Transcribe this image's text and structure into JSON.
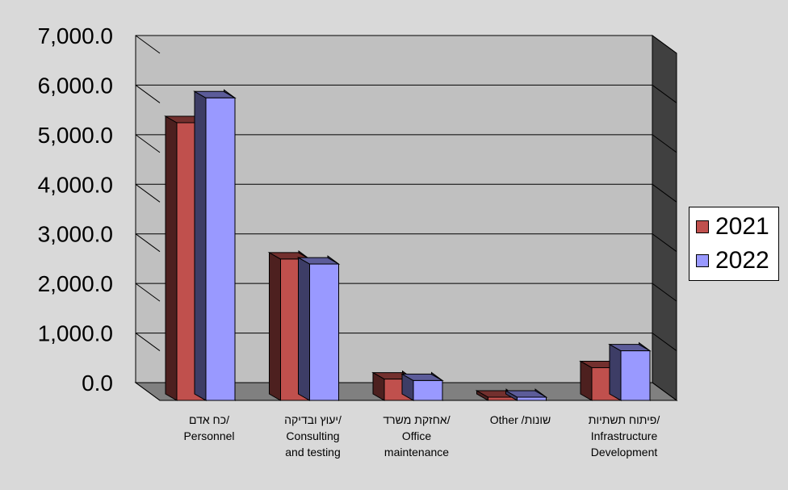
{
  "chart_data": {
    "type": "bar",
    "categories": [
      [
        "כח אדם/",
        "Personnel"
      ],
      [
        "יעוץ ובדיקה/",
        "Consulting",
        "and testing"
      ],
      [
        "אחזקת משרד/",
        "Office",
        "maintenance"
      ],
      [
        "Other /שונות"
      ],
      [
        "פיתוח תשתיות/",
        "Infrastructure",
        "Development"
      ]
    ],
    "series": [
      {
        "name": "2021",
        "color": "#c0504d",
        "values": [
          5600,
          2850,
          430,
          -80,
          660
        ]
      },
      {
        "name": "2022",
        "color": "#9999ff",
        "values": [
          6100,
          2750,
          400,
          -80,
          1000
        ]
      }
    ],
    "yticks": [
      "7,000.0",
      "6,000.0",
      "5,000.0",
      "4,000.0",
      "3,000.0",
      "2,000.0",
      "1,000.0",
      "0.0"
    ],
    "ylim": [
      0,
      7000
    ],
    "grid": true,
    "legend_position": "right"
  }
}
